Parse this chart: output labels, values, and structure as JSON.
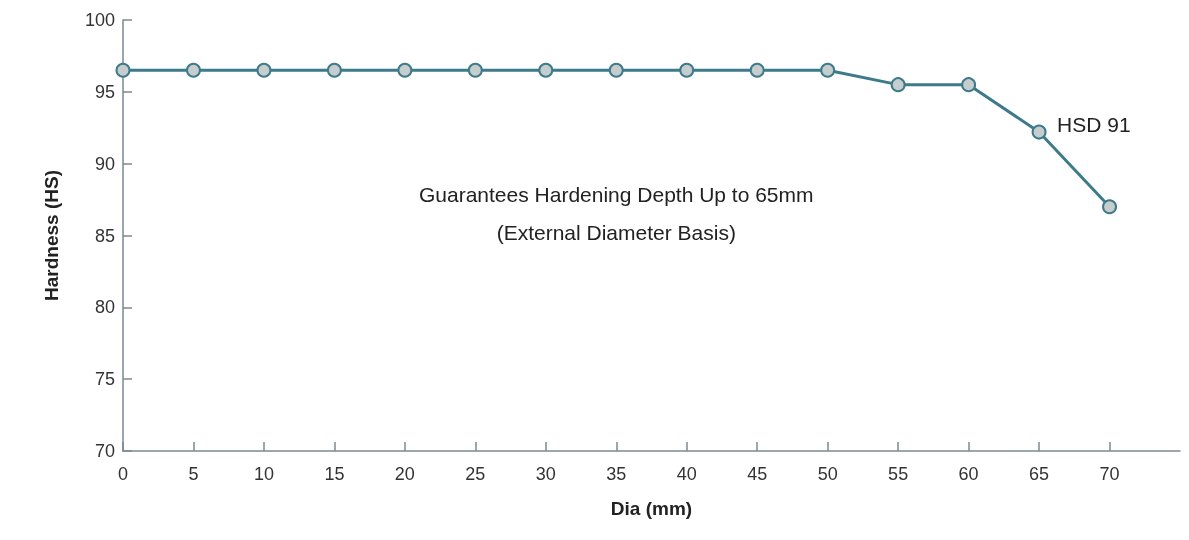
{
  "chart_data": {
    "type": "line",
    "xlabel": "Dia (mm)",
    "ylabel": "Hardness (HS)",
    "x": [
      0,
      5,
      10,
      15,
      20,
      25,
      30,
      35,
      40,
      45,
      50,
      55,
      60,
      65,
      70
    ],
    "series": [
      {
        "name": "HSD 91",
        "color": "#3d7a8a",
        "values": [
          96.5,
          96.5,
          96.5,
          96.5,
          96.5,
          96.5,
          96.5,
          96.5,
          96.5,
          96.5,
          96.5,
          95.5,
          95.5,
          92.2,
          87
        ]
      }
    ],
    "xlim": [
      0,
      75
    ],
    "xticks": [
      0,
      5,
      10,
      15,
      20,
      25,
      30,
      35,
      40,
      45,
      50,
      55,
      60,
      65,
      70
    ],
    "ylim": [
      70,
      100
    ],
    "yticks": [
      70,
      75,
      80,
      85,
      90,
      95,
      100
    ],
    "annotations": [
      "Guarantees Hardening Depth Up to 65mm\n(External Diameter Basis)"
    ],
    "grid": false,
    "legend": false,
    "marker": "circle",
    "line_style": "solid"
  }
}
